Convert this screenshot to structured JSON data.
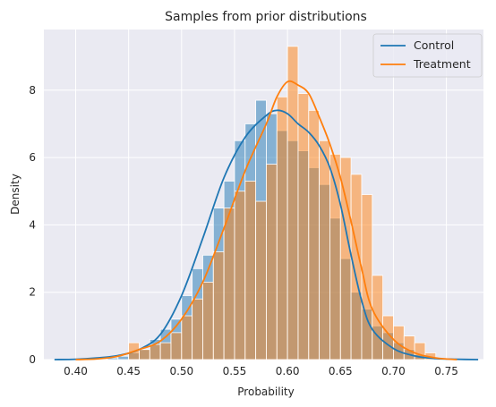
{
  "chart_data": {
    "type": "histogram",
    "title": "Samples from prior distributions",
    "xlabel": "Probability",
    "ylabel": "Density",
    "xlim": [
      0.37,
      0.785
    ],
    "ylim": [
      0,
      9.8
    ],
    "xticks": [
      0.4,
      0.45,
      0.5,
      0.55,
      0.6,
      0.65,
      0.7,
      0.75
    ],
    "xtick_labels": [
      "0.40",
      "0.45",
      "0.50",
      "0.55",
      "0.60",
      "0.65",
      "0.70",
      "0.75"
    ],
    "yticks": [
      0,
      2,
      4,
      6,
      8
    ],
    "ytick_labels": [
      "0",
      "2",
      "4",
      "6",
      "8"
    ],
    "grid": true,
    "legend_position": "top-right",
    "series": [
      {
        "name": "Control",
        "color": "#1f77b4",
        "bin_edges": [
          0.43,
          0.44,
          0.45,
          0.46,
          0.47,
          0.48,
          0.49,
          0.5,
          0.51,
          0.52,
          0.53,
          0.54,
          0.55,
          0.56,
          0.57,
          0.58,
          0.59,
          0.6,
          0.61,
          0.62,
          0.63,
          0.64,
          0.65,
          0.66,
          0.67,
          0.68,
          0.69,
          0.7,
          0.71,
          0.72,
          0.73
        ],
        "bin_heights": [
          0.05,
          0.1,
          0.2,
          0.3,
          0.6,
          0.9,
          1.2,
          1.9,
          2.7,
          3.1,
          4.5,
          5.3,
          6.5,
          7.0,
          7.7,
          7.3,
          6.8,
          6.5,
          6.2,
          5.7,
          5.2,
          4.2,
          3.0,
          2.0,
          1.5,
          1.0,
          0.8,
          0.5,
          0.3,
          0.15
        ],
        "kde_x": [
          0.38,
          0.4,
          0.42,
          0.44,
          0.46,
          0.48,
          0.5,
          0.52,
          0.54,
          0.56,
          0.58,
          0.59,
          0.6,
          0.61,
          0.62,
          0.63,
          0.64,
          0.65,
          0.66,
          0.67,
          0.68,
          0.7,
          0.72,
          0.74,
          0.76,
          0.78
        ],
        "kde_y": [
          0.0,
          0.01,
          0.05,
          0.12,
          0.3,
          0.75,
          1.9,
          3.6,
          5.4,
          6.6,
          7.25,
          7.4,
          7.3,
          7.0,
          6.75,
          6.35,
          5.7,
          4.6,
          3.1,
          1.75,
          0.9,
          0.33,
          0.11,
          0.03,
          0.01,
          0.0
        ]
      },
      {
        "name": "Treatment",
        "color": "#ff7f0e",
        "bin_edges": [
          0.45,
          0.46,
          0.47,
          0.48,
          0.49,
          0.5,
          0.51,
          0.52,
          0.53,
          0.54,
          0.55,
          0.56,
          0.57,
          0.58,
          0.59,
          0.6,
          0.61,
          0.62,
          0.63,
          0.64,
          0.65,
          0.66,
          0.67,
          0.68,
          0.69,
          0.7,
          0.71,
          0.72,
          0.73,
          0.74
        ],
        "bin_heights": [
          0.5,
          0.3,
          0.45,
          0.5,
          0.8,
          1.3,
          1.8,
          2.3,
          3.2,
          4.5,
          5.0,
          5.3,
          4.7,
          5.8,
          7.8,
          9.3,
          7.9,
          7.4,
          6.5,
          6.1,
          6.0,
          5.5,
          4.9,
          2.5,
          1.3,
          1.0,
          0.7,
          0.5,
          0.2
        ],
        "kde_x": [
          0.4,
          0.42,
          0.44,
          0.46,
          0.48,
          0.5,
          0.52,
          0.54,
          0.56,
          0.58,
          0.59,
          0.6,
          0.61,
          0.62,
          0.63,
          0.64,
          0.65,
          0.66,
          0.67,
          0.68,
          0.7,
          0.72,
          0.74,
          0.76
        ],
        "kde_y": [
          0.0,
          0.02,
          0.1,
          0.3,
          0.55,
          1.2,
          2.3,
          3.9,
          5.6,
          7.0,
          7.8,
          8.25,
          8.15,
          7.9,
          7.2,
          6.4,
          5.4,
          4.1,
          2.7,
          1.5,
          0.6,
          0.2,
          0.05,
          0.0
        ]
      }
    ]
  }
}
